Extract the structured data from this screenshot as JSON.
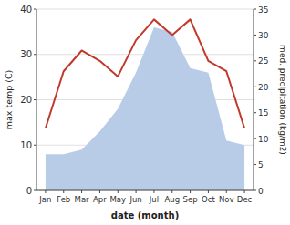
{
  "chart_data": {
    "type": "combo",
    "xlabel": "date (month)",
    "ylabel": "max temp (C)",
    "y2label": "med. precipitation (kg/m2)",
    "categories": [
      "Jan",
      "Feb",
      "Mar",
      "Apr",
      "May",
      "Jun",
      "Jul",
      "Aug",
      "Sep",
      "Oct",
      "Nov",
      "Dec"
    ],
    "series": [
      {
        "type": "area",
        "color": "#b8cce8",
        "values": [
          8,
          8,
          9,
          13,
          18,
          26,
          36,
          35,
          27,
          26,
          11,
          10
        ]
      },
      {
        "type": "line",
        "axis": "y2",
        "color": "#c0392b",
        "values": [
          12,
          23,
          27,
          25,
          22,
          29,
          33,
          30,
          33,
          25,
          23,
          12
        ]
      }
    ],
    "ylim": [
      0,
      40
    ],
    "yticks": [
      0,
      10,
      20,
      30,
      40
    ],
    "y2lim": [
      0,
      35
    ],
    "y2ticks": [
      0,
      5,
      10,
      15,
      20,
      25,
      30,
      35
    ],
    "grid": true
  }
}
